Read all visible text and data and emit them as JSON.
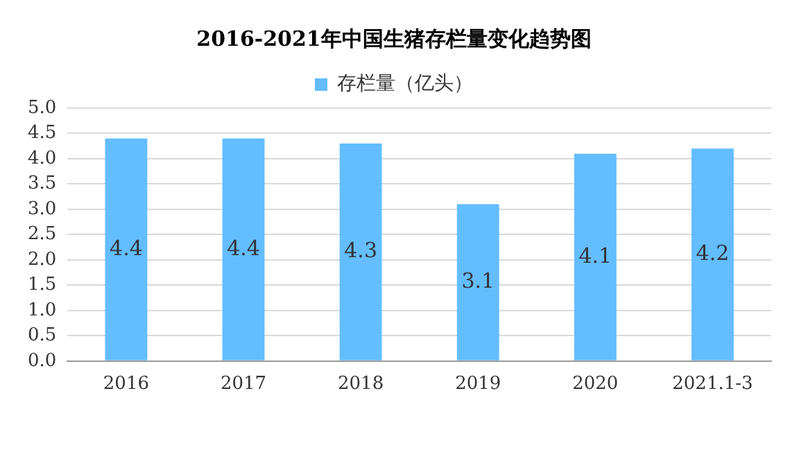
{
  "chart_data": {
    "type": "bar",
    "title": "2016-2021年中国生猪存栏量变化趋势图",
    "categories": [
      "2016",
      "2017",
      "2018",
      "2019",
      "2020",
      "2021.1-3"
    ],
    "series": [
      {
        "name": "存栏量（亿头）",
        "color": "#63bdff",
        "values": [
          4.4,
          4.4,
          4.3,
          3.1,
          4.1,
          4.2
        ]
      }
    ],
    "ylim": [
      0,
      5
    ],
    "yticks": [
      {
        "value": 0,
        "label": "0.0"
      },
      {
        "value": 0.5,
        "label": "0.5"
      },
      {
        "value": 1,
        "label": "1.0"
      },
      {
        "value": 1.5,
        "label": "1.5"
      },
      {
        "value": 2,
        "label": "2.0"
      },
      {
        "value": 2.5,
        "label": "2.5"
      },
      {
        "value": 3,
        "label": "3.0"
      },
      {
        "value": 3.5,
        "label": "3.5"
      },
      {
        "value": 4,
        "label": "4.0"
      },
      {
        "value": 4.5,
        "label": "4.5"
      },
      {
        "value": 5,
        "label": "5.0"
      }
    ],
    "grid": "y",
    "legend": "top",
    "data_labels": true
  }
}
